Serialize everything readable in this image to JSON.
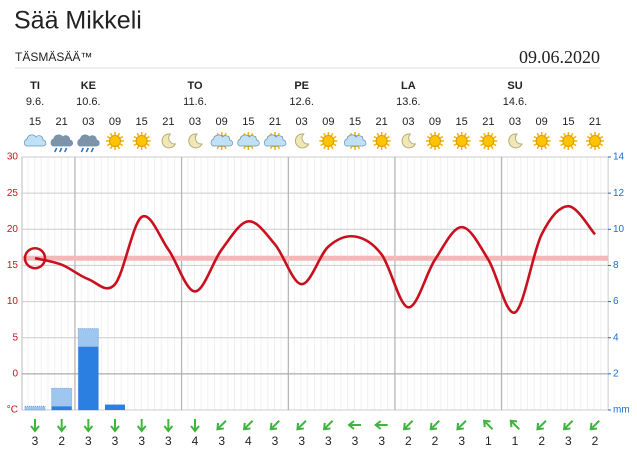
{
  "chart_data": {
    "type": "line",
    "title": "Sää Mikkeli",
    "subtitle": "TÄSMÄSÄÄ™",
    "date": "09.06.2020",
    "days": [
      "TI",
      null,
      "KE",
      null,
      null,
      null,
      "TO",
      null,
      null,
      null,
      "PE",
      null,
      null,
      null,
      "LA",
      null,
      null,
      null,
      "SU",
      null,
      null,
      null
    ],
    "dates": [
      "9.6.",
      null,
      "10.6.",
      null,
      null,
      null,
      "11.6.",
      null,
      null,
      null,
      "12.6.",
      null,
      null,
      null,
      "13.6.",
      null,
      null,
      null,
      "14.6.",
      null,
      null,
      null
    ],
    "categories": [
      "15",
      "21",
      "03",
      "09",
      "15",
      "21",
      "03",
      "09",
      "15",
      "21",
      "03",
      "09",
      "15",
      "21",
      "03",
      "09",
      "15",
      "21",
      "03",
      "09",
      "15",
      "21"
    ],
    "temperature": {
      "color": "#c8101e",
      "values": [
        16.0,
        15.1,
        13.1,
        12.4,
        21.7,
        17.2,
        11.4,
        17.2,
        21.1,
        17.9,
        12.4,
        17.6,
        19.0,
        16.5,
        9.2,
        15.8,
        20.3,
        15.8,
        8.5,
        19.3,
        23.2,
        19.3
      ]
    },
    "precipitation": {
      "color": "#2b7fe0",
      "values": [
        null,
        0.2,
        3.5,
        0.3,
        null,
        null,
        null,
        null,
        null,
        null,
        null,
        null,
        null,
        null,
        null,
        null,
        null,
        null,
        null,
        null,
        null,
        null
      ]
    },
    "precipitation_max": {
      "color": "#9fc6ee",
      "values": [
        0.2,
        1.2,
        4.5,
        null,
        null,
        null,
        null,
        null,
        null,
        null,
        null,
        null,
        null,
        null,
        null,
        null,
        null,
        null,
        null,
        null,
        null,
        null
      ]
    },
    "wind": [
      3,
      2,
      3,
      3,
      3,
      3,
      4,
      3,
      4,
      3,
      3,
      3,
      3,
      3,
      2,
      2,
      3,
      1,
      1,
      2,
      3,
      2
    ],
    "ylim": [
      -5,
      30
    ],
    "yticks": [
      {
        "value": -5,
        "label": "°C"
      },
      0,
      5,
      10,
      15,
      20,
      25,
      30
    ],
    "y2lim": [
      0,
      14
    ],
    "y2ticks": [
      {
        "value": 0,
        "label": "mm"
      },
      2,
      4,
      6,
      8,
      10,
      12,
      14
    ],
    "grid": true
  }
}
